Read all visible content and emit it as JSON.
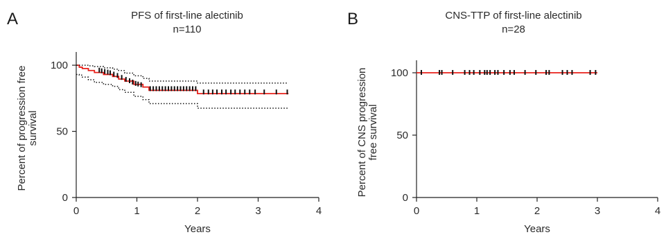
{
  "panels": [
    {
      "letter": "A",
      "chart_data": {
        "type": "line",
        "title": "PFS of first-line alectinib",
        "subtitle": "n=110",
        "xlabel": "Years",
        "ylabel_lines": [
          "Percent of progression free",
          "survival"
        ],
        "xlim": [
          0,
          4
        ],
        "ylim": [
          0,
          110
        ],
        "xticks": [
          0,
          1,
          2,
          3,
          4
        ],
        "yticks": [
          0,
          50,
          100
        ],
        "grid": false,
        "series": [
          {
            "style": "solid",
            "color": "#e8201a",
            "x": [
              0,
              0.05,
              0.1,
              0.2,
              0.3,
              0.45,
              0.6,
              0.7,
              0.8,
              0.95,
              1.1,
              1.2,
              2.0,
              3.5
            ],
            "y": [
              100,
              98.5,
              97.5,
              96,
              94.5,
              93,
              91.5,
              89.5,
              88,
              85.5,
              83.5,
              81,
              78.5,
              78.5
            ]
          },
          {
            "style": "dotted",
            "color": "#111111",
            "x": [
              0,
              0.1,
              0.2,
              0.3,
              0.45,
              0.6,
              0.7,
              0.8,
              0.95,
              1.1,
              1.2,
              2.0,
              3.5
            ],
            "y": [
              100,
              100,
              99.5,
              99,
              98,
              97,
              96,
              94,
              92,
              90,
              88,
              86.5,
              86.5
            ]
          },
          {
            "style": "dotted",
            "color": "#111111",
            "x": [
              0,
              0.05,
              0.1,
              0.2,
              0.3,
              0.45,
              0.6,
              0.7,
              0.8,
              0.95,
              1.1,
              1.2,
              2.0,
              3.5
            ],
            "y": [
              93,
              92.5,
              91,
              89,
              87,
              85.5,
              84,
              81.5,
              79.5,
              76.5,
              74,
              71,
              67.5,
              67.5
            ]
          }
        ],
        "censor_marks": {
          "color": "#111111",
          "x": [
            0.38,
            0.42,
            0.47,
            0.52,
            0.56,
            0.62,
            0.68,
            0.75,
            0.82,
            0.88,
            0.93,
            0.98,
            1.02,
            1.07,
            1.22,
            1.27,
            1.32,
            1.37,
            1.42,
            1.47,
            1.52,
            1.57,
            1.62,
            1.67,
            1.72,
            1.77,
            1.82,
            1.87,
            1.92,
            1.97,
            2.1,
            2.18,
            2.25,
            2.32,
            2.4,
            2.47,
            2.55,
            2.62,
            2.7,
            2.78,
            2.86,
            2.95,
            3.1,
            3.3,
            3.48
          ],
          "y": [
            96,
            95.5,
            95,
            94.5,
            94,
            93,
            92,
            90.5,
            89,
            88,
            87,
            86,
            85.5,
            85,
            82,
            82,
            82,
            82,
            82,
            82,
            82,
            82,
            82,
            82,
            82,
            82,
            82,
            82,
            82,
            82,
            79.5,
            79.5,
            79.5,
            79.5,
            79.5,
            79.5,
            79.5,
            79.5,
            79.5,
            79.5,
            79.5,
            79.5,
            79.5,
            79.5,
            79.5
          ]
        }
      }
    },
    {
      "letter": "B",
      "chart_data": {
        "type": "line",
        "title": "CNS-TTP of first-line alectinib",
        "subtitle": "n=28",
        "xlabel": "Years",
        "ylabel_lines": [
          "Percent of CNS progression",
          "free survival"
        ],
        "xlim": [
          0,
          4
        ],
        "ylim": [
          0,
          110
        ],
        "xticks": [
          0,
          1,
          2,
          3,
          4
        ],
        "yticks": [
          0,
          50,
          100
        ],
        "grid": false,
        "series": [
          {
            "style": "solid",
            "color": "#e8201a",
            "x": [
              0,
              3.0
            ],
            "y": [
              100,
              100
            ]
          }
        ],
        "censor_marks": {
          "color": "#111111",
          "x": [
            0.08,
            0.38,
            0.42,
            0.6,
            0.8,
            0.88,
            0.95,
            1.05,
            1.13,
            1.17,
            1.22,
            1.3,
            1.35,
            1.45,
            1.55,
            1.62,
            1.8,
            1.98,
            2.15,
            2.2,
            2.42,
            2.5,
            2.58,
            2.88,
            2.97
          ],
          "y": [
            100,
            100,
            100,
            100,
            100,
            100,
            100,
            100,
            100,
            100,
            100,
            100,
            100,
            100,
            100,
            100,
            100,
            100,
            100,
            100,
            100,
            100,
            100,
            100,
            100
          ]
        }
      }
    }
  ]
}
